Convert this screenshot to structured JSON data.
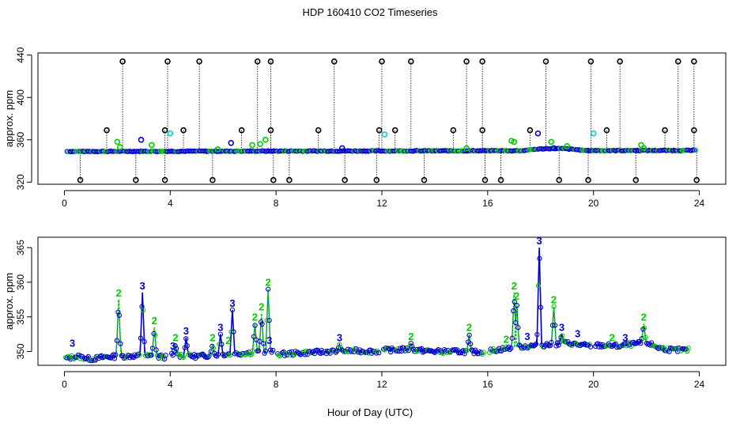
{
  "page": {
    "title": "HDP  160410  CO2 Timeseries",
    "xlabel": "Hour of Day (UTC)"
  },
  "colors": {
    "black": "#000000",
    "green": "#00cc00",
    "blue": "#0000cc",
    "cyan": "#00cccc"
  },
  "chart_data": [
    {
      "type": "scatter",
      "name": "top-panel",
      "title": "",
      "xlabel": "",
      "ylabel": "approx. ppm",
      "xlim": [
        -1,
        25
      ],
      "ylim": [
        318,
        442
      ],
      "xticks": [
        0,
        4,
        8,
        12,
        16,
        20,
        24
      ],
      "yticks": [
        320,
        360,
        400,
        440
      ],
      "baseline": {
        "x_start": 0.1,
        "x_end": 23.9,
        "y_start": 349,
        "y_end": 350,
        "bumps": [
          [
            17.3,
            19.7,
            352
          ]
        ]
      },
      "out_of_range_high_x": [
        2.2,
        3.9,
        5.1,
        7.3,
        7.8,
        10.2,
        12.0,
        13.1,
        15.2,
        15.8,
        18.2,
        19.9,
        21.0,
        23.2,
        23.8
      ],
      "out_of_range_high_y": 434,
      "out_of_range_low_x": [
        0.6,
        2.7,
        3.8,
        5.6,
        7.9,
        8.5,
        10.6,
        11.8,
        13.6,
        15.9,
        16.5,
        18.7,
        19.8,
        21.6,
        23.9
      ],
      "out_of_range_low_y": 322,
      "mid_flags_x": [
        1.6,
        3.8,
        4.5,
        6.7,
        7.8,
        9.6,
        11.9,
        12.5,
        14.7,
        15.8,
        17.6,
        20.5,
        22.7,
        23.8
      ],
      "mid_flags_y": 369,
      "series": [
        {
          "name": "flag-2",
          "color": "green",
          "points": [
            [
              2.0,
              358
            ],
            [
              2.1,
              353
            ],
            [
              3.3,
              355
            ],
            [
              5.8,
              351
            ],
            [
              7.1,
              355
            ],
            [
              7.4,
              356
            ],
            [
              7.6,
              360
            ],
            [
              15.2,
              352
            ],
            [
              16.9,
              359
            ],
            [
              17.0,
              358
            ],
            [
              18.4,
              358
            ],
            [
              19.0,
              354
            ],
            [
              21.8,
              355
            ],
            [
              21.9,
              352
            ]
          ]
        },
        {
          "name": "flag-3",
          "color": "blue",
          "points": [
            [
              2.9,
              360
            ],
            [
              6.3,
              357
            ],
            [
              17.9,
              366
            ],
            [
              10.5,
              352
            ],
            [
              18.5,
              352
            ]
          ]
        },
        {
          "name": "flag-cyan",
          "color": "cyan",
          "points": [
            [
              4.0,
              366
            ],
            [
              12.1,
              365
            ],
            [
              20.0,
              366
            ]
          ]
        }
      ]
    },
    {
      "type": "line",
      "name": "bottom-panel",
      "title": "",
      "xlabel": "",
      "ylabel": "approx. ppm",
      "xlim": [
        -1,
        25
      ],
      "ylim": [
        348,
        366.5
      ],
      "xticks": [
        0,
        4,
        8,
        12,
        16,
        20,
        24
      ],
      "yticks": [
        350,
        355,
        360,
        365
      ],
      "gaps": [
        [
          3.85,
          4.05
        ],
        [
          7.9,
          8.05
        ],
        [
          11.9,
          12.05
        ],
        [
          15.85,
          16.05
        ],
        [
          19.9,
          20.05
        ]
      ],
      "base": [
        [
          0.05,
          349.0
        ],
        [
          0.5,
          349.3
        ],
        [
          1.0,
          348.9
        ],
        [
          1.5,
          349.2
        ],
        [
          2.0,
          349.3
        ],
        [
          3.0,
          349.4
        ],
        [
          3.8,
          349.2
        ],
        [
          4.1,
          349.5
        ],
        [
          5.0,
          349.3
        ],
        [
          6.0,
          349.6
        ],
        [
          7.0,
          349.8
        ],
        [
          7.8,
          350.0
        ],
        [
          8.1,
          349.6
        ],
        [
          9.0,
          349.8
        ],
        [
          10.0,
          350.0
        ],
        [
          11.0,
          350.1
        ],
        [
          11.8,
          350.0
        ],
        [
          12.1,
          350.2
        ],
        [
          13.0,
          350.3
        ],
        [
          14.0,
          350.0
        ],
        [
          15.0,
          350.0
        ],
        [
          15.8,
          349.9
        ],
        [
          16.1,
          350.1
        ],
        [
          17.0,
          350.6
        ],
        [
          18.0,
          350.9
        ],
        [
          19.0,
          351.2
        ],
        [
          19.8,
          350.8
        ],
        [
          20.1,
          350.9
        ],
        [
          21.0,
          350.8
        ],
        [
          22.0,
          351.3
        ],
        [
          22.5,
          350.5
        ],
        [
          23.0,
          350.2
        ],
        [
          23.6,
          350.2
        ]
      ],
      "peaks": [
        {
          "x": 2.05,
          "y": 357.5,
          "flag": "2",
          "color": "green"
        },
        {
          "x": 2.95,
          "y": 358.5,
          "flag": "3",
          "color": "blue"
        },
        {
          "x": 3.4,
          "y": 353.5,
          "flag": "2",
          "color": "green"
        },
        {
          "x": 4.2,
          "y": 351.0,
          "flag": "2",
          "color": "green"
        },
        {
          "x": 4.6,
          "y": 352.0,
          "flag": "3",
          "color": "blue"
        },
        {
          "x": 5.6,
          "y": 351.0,
          "flag": "2",
          "color": "green"
        },
        {
          "x": 5.9,
          "y": 352.5,
          "flag": "3",
          "color": "blue"
        },
        {
          "x": 6.35,
          "y": 356.0,
          "flag": "3",
          "color": "blue"
        },
        {
          "x": 7.2,
          "y": 354.0,
          "flag": "2",
          "color": "green"
        },
        {
          "x": 7.45,
          "y": 355.5,
          "flag": "2",
          "color": "green"
        },
        {
          "x": 7.7,
          "y": 359.0,
          "flag": "2",
          "color": "green"
        },
        {
          "x": 10.4,
          "y": 351.0,
          "flag": "3",
          "color": "blue"
        },
        {
          "x": 13.1,
          "y": 351.2,
          "flag": "2",
          "color": "green"
        },
        {
          "x": 15.3,
          "y": 352.5,
          "flag": "2",
          "color": "green"
        },
        {
          "x": 17.0,
          "y": 358.5,
          "flag": "2",
          "color": "green"
        },
        {
          "x": 17.1,
          "y": 357.0,
          "flag": "2",
          "color": "green"
        },
        {
          "x": 17.95,
          "y": 365.0,
          "flag": "3",
          "color": "blue"
        },
        {
          "x": 18.5,
          "y": 356.5,
          "flag": "2",
          "color": "green"
        },
        {
          "x": 18.8,
          "y": 352.5,
          "flag": "3",
          "color": "blue"
        },
        {
          "x": 21.9,
          "y": 354.0,
          "flag": "2",
          "color": "green"
        }
      ],
      "minor_labels": [
        {
          "x": 0.3,
          "y": 350.2,
          "flag": "3",
          "color": "blue"
        },
        {
          "x": 4.1,
          "y": 349.8,
          "flag": "3",
          "color": "blue"
        },
        {
          "x": 6.2,
          "y": 350.6,
          "flag": "2",
          "color": "green"
        },
        {
          "x": 7.75,
          "y": 350.6,
          "flag": "3",
          "color": "blue"
        },
        {
          "x": 16.7,
          "y": 350.8,
          "flag": "2",
          "color": "green"
        },
        {
          "x": 17.5,
          "y": 351.2,
          "flag": "3",
          "color": "blue"
        },
        {
          "x": 19.4,
          "y": 351.6,
          "flag": "3",
          "color": "blue"
        },
        {
          "x": 20.7,
          "y": 351.0,
          "flag": "2",
          "color": "green"
        },
        {
          "x": 21.2,
          "y": 351.0,
          "flag": "3",
          "color": "blue"
        }
      ]
    }
  ]
}
